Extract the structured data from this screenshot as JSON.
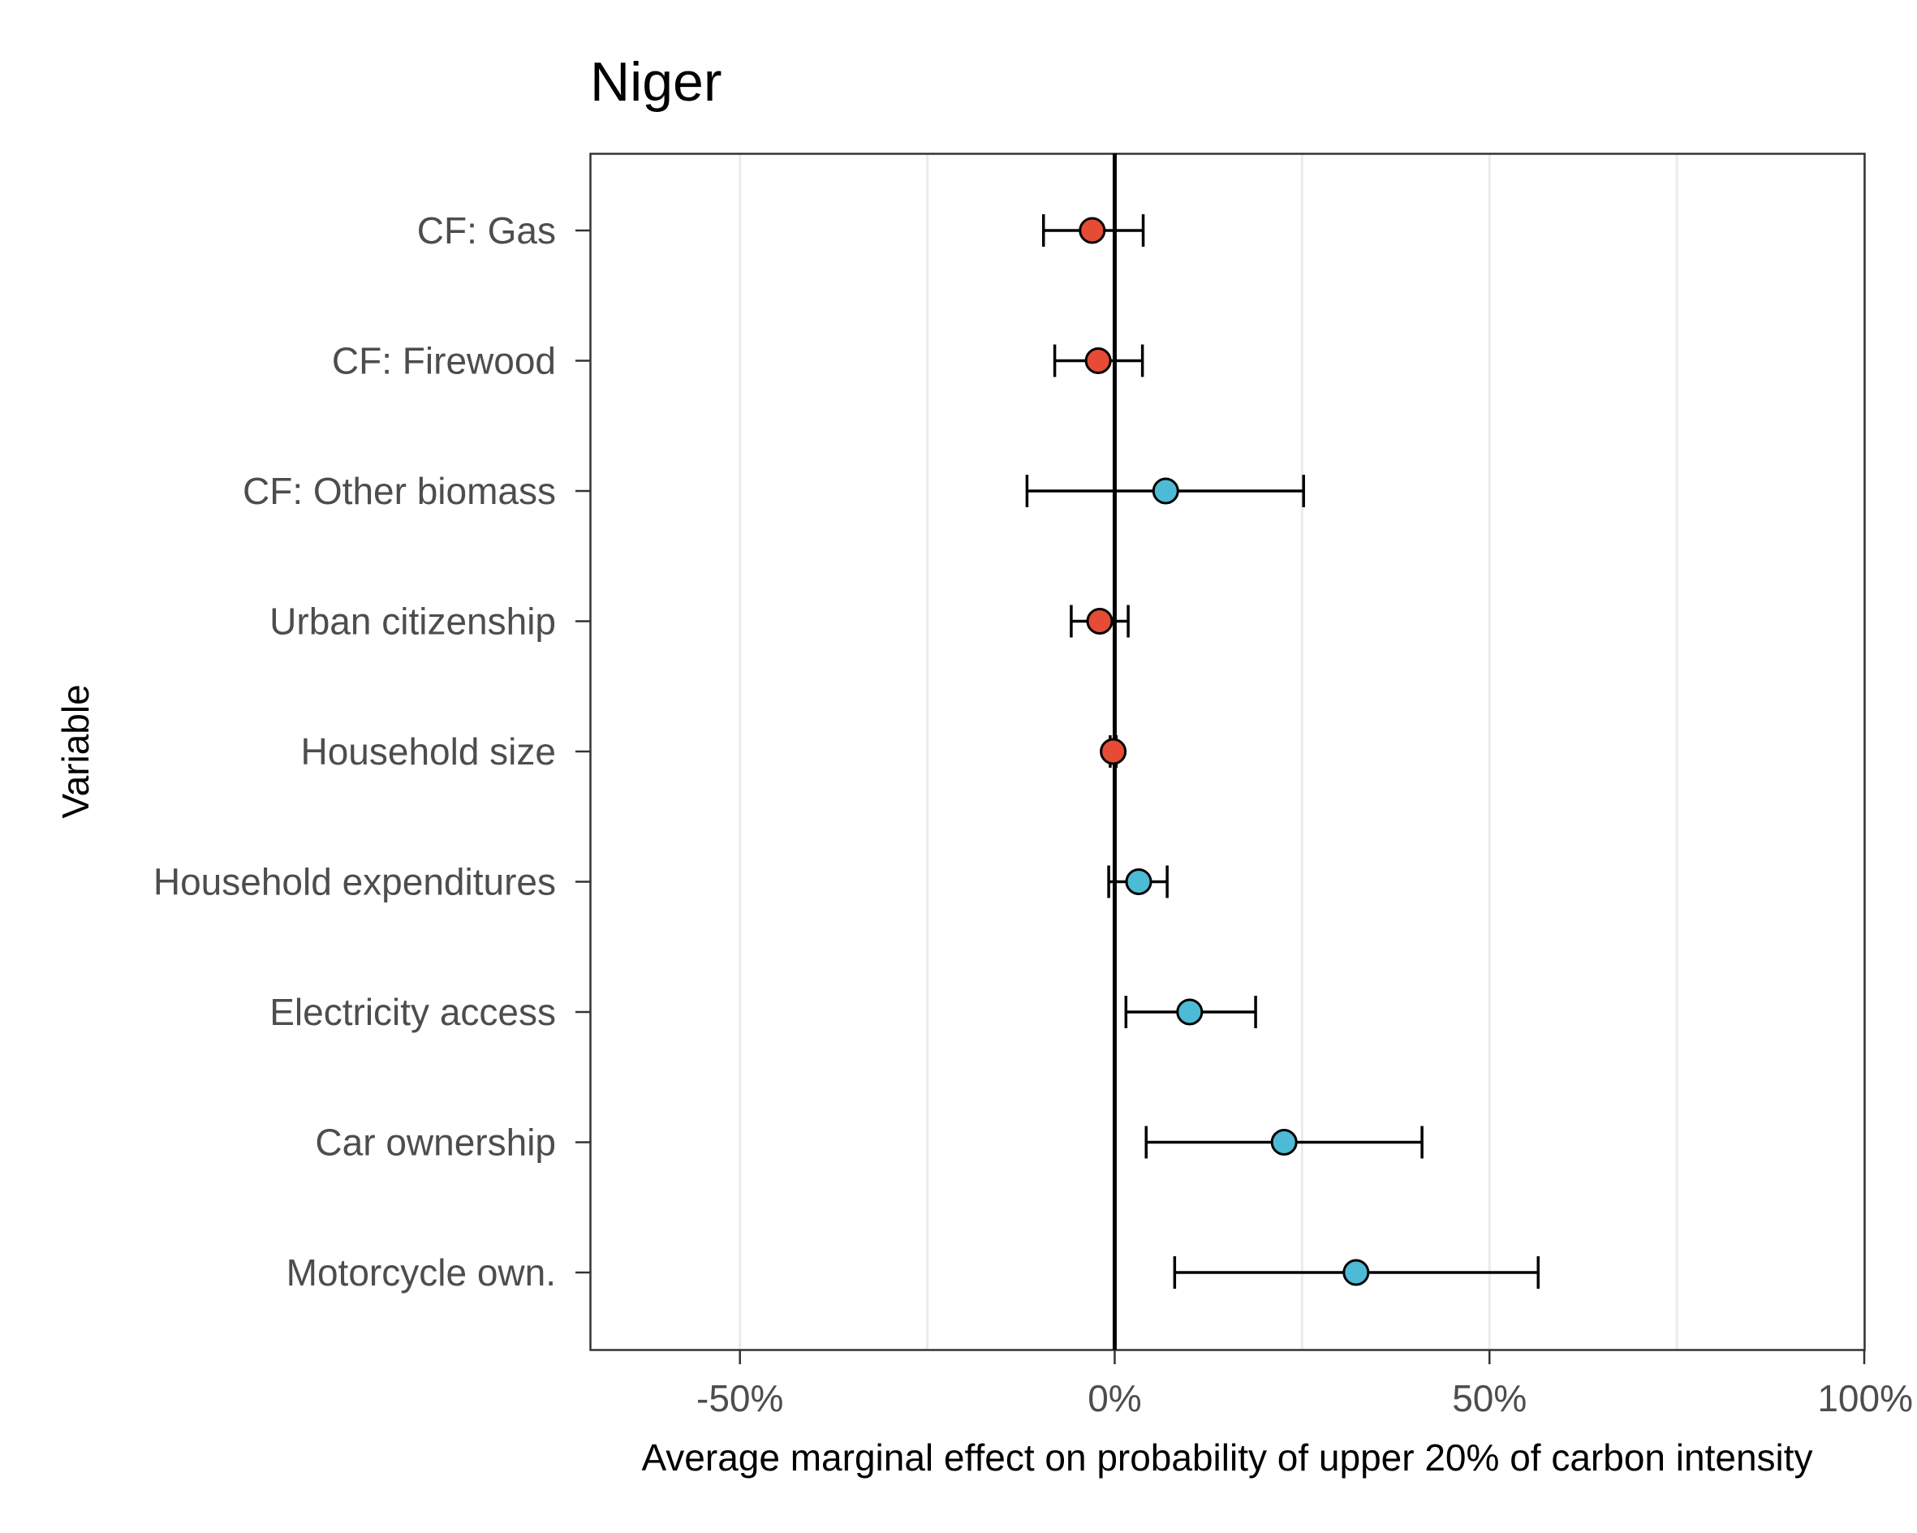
{
  "chart_data": {
    "type": "scatter",
    "title": "Niger",
    "xlabel": "Average marginal effect on probability of upper 20% of carbon intensity",
    "ylabel": "Variable",
    "xlim": [
      -0.7,
      1.0
    ],
    "x_ticks": [
      -0.5,
      0,
      0.5,
      1.0
    ],
    "x_tick_labels": [
      "-50%",
      "0%",
      "50%",
      "100%"
    ],
    "grid": "vertical major and minor lines",
    "reference_line": 0,
    "categories": [
      "CF: Gas",
      "CF: Firewood",
      "CF: Other biomass",
      "Urban citizenship",
      "Household size",
      "Household expenditures",
      "Electricity access",
      "Car ownership",
      "Motorcycle own."
    ],
    "points": [
      {
        "label": "CF: Gas",
        "estimate": -0.03,
        "lower": -0.095,
        "upper": 0.038
      },
      {
        "label": "CF: Firewood",
        "estimate": -0.022,
        "lower": -0.08,
        "upper": 0.037
      },
      {
        "label": "CF: Other biomass",
        "estimate": 0.068,
        "lower": -0.117,
        "upper": 0.252
      },
      {
        "label": "Urban citizenship",
        "estimate": -0.02,
        "lower": -0.058,
        "upper": 0.018
      },
      {
        "label": "Household size",
        "estimate": -0.002,
        "lower": -0.006,
        "upper": 0.002
      },
      {
        "label": "Household expenditures",
        "estimate": 0.032,
        "lower": -0.008,
        "upper": 0.07
      },
      {
        "label": "Electricity access",
        "estimate": 0.1,
        "lower": 0.015,
        "upper": 0.188
      },
      {
        "label": "Car ownership",
        "estimate": 0.226,
        "lower": 0.042,
        "upper": 0.41
      },
      {
        "label": "Motorcycle own.",
        "estimate": 0.322,
        "lower": 0.08,
        "upper": 0.565
      }
    ],
    "colors": {
      "negative": "#e64b35",
      "positive": "#4dbbd5",
      "grid": "#ebebeb",
      "axis": "#333333",
      "ink": "#000000"
    }
  }
}
